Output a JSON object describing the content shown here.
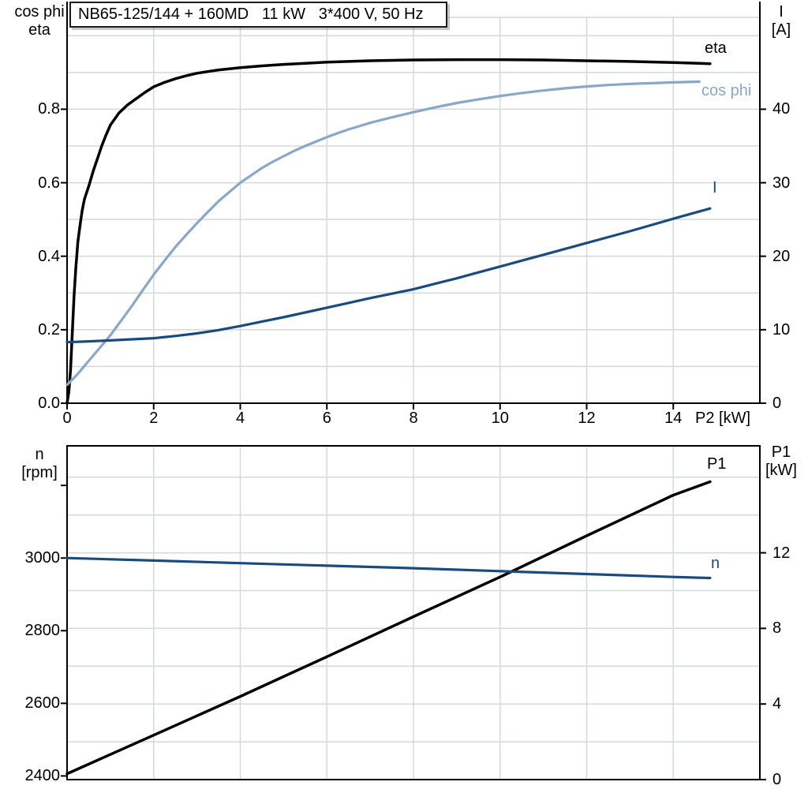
{
  "header": {
    "title": "NB65-125/144 + 160MD   11 kW   3*400 V, 50 Hz"
  },
  "colors": {
    "background": "#ffffff",
    "gridline": "#d5d8db",
    "axis": "#000000",
    "curve_black": "#000000",
    "curve_light_blue": "#8aa6c9",
    "curve_dark_blue": "#1a4b7e"
  },
  "chart_data": [
    {
      "type": "line",
      "title": "NB65-125/144 + 160MD   11 kW   3*400 V, 50 Hz",
      "xlabel": "P2 [kW]",
      "x_range": [
        0,
        16
      ],
      "x_grid_step": 2,
      "x_ticks": [
        {
          "value": 0,
          "label": "0"
        },
        {
          "value": 2,
          "label": "2"
        },
        {
          "value": 4,
          "label": "4"
        },
        {
          "value": 6,
          "label": "6"
        },
        {
          "value": 8,
          "label": "8"
        },
        {
          "value": 10,
          "label": "10"
        },
        {
          "value": 12,
          "label": "12"
        },
        {
          "value": 14,
          "label": "14"
        }
      ],
      "left_axis": {
        "header_line1": "cos phi",
        "header_line2": "eta",
        "range": [
          0,
          1.05
        ],
        "grid_step": 0.1,
        "ticks": [
          {
            "value": 0.0,
            "label": "0.0"
          },
          {
            "value": 0.2,
            "label": "0.2"
          },
          {
            "value": 0.4,
            "label": "0.4"
          },
          {
            "value": 0.6,
            "label": "0.6"
          },
          {
            "value": 0.8,
            "label": "0.8"
          }
        ]
      },
      "right_axis": {
        "header_line1": "I",
        "header_line2": "[A]",
        "range": [
          0,
          52.5
        ],
        "ticks": [
          {
            "value": 0,
            "label": "0"
          },
          {
            "value": 10,
            "label": "10"
          },
          {
            "value": 20,
            "label": "20"
          },
          {
            "value": 30,
            "label": "30"
          },
          {
            "value": 40,
            "label": "40"
          }
        ]
      },
      "series": [
        {
          "name": "eta",
          "label": "eta",
          "axis": "left",
          "color": "#000000",
          "width": 3.5,
          "points": [
            [
              0,
              0
            ],
            [
              0.04,
              0.03
            ],
            [
              0.08,
              0.09
            ],
            [
              0.12,
              0.19
            ],
            [
              0.16,
              0.29
            ],
            [
              0.2,
              0.365
            ],
            [
              0.25,
              0.44
            ],
            [
              0.3,
              0.485
            ],
            [
              0.35,
              0.525
            ],
            [
              0.4,
              0.555
            ],
            [
              0.5,
              0.59
            ],
            [
              0.6,
              0.63
            ],
            [
              0.7,
              0.665
            ],
            [
              0.8,
              0.7
            ],
            [
              0.9,
              0.73
            ],
            [
              1,
              0.757
            ],
            [
              1.2,
              0.79
            ],
            [
              1.4,
              0.812
            ],
            [
              1.6,
              0.829
            ],
            [
              1.8,
              0.846
            ],
            [
              2,
              0.861
            ],
            [
              2.25,
              0.873
            ],
            [
              2.5,
              0.883
            ],
            [
              2.75,
              0.891
            ],
            [
              3,
              0.898
            ],
            [
              3.5,
              0.907
            ],
            [
              4,
              0.913
            ],
            [
              4.5,
              0.918
            ],
            [
              5,
              0.922
            ],
            [
              5.5,
              0.925
            ],
            [
              6,
              0.928
            ],
            [
              6.5,
              0.93
            ],
            [
              7,
              0.932
            ],
            [
              7.5,
              0.933
            ],
            [
              8,
              0.934
            ],
            [
              9,
              0.935
            ],
            [
              10,
              0.935
            ],
            [
              11,
              0.934
            ],
            [
              12,
              0.932
            ],
            [
              13,
              0.93
            ],
            [
              14,
              0.927
            ],
            [
              14.85,
              0.924
            ]
          ]
        },
        {
          "name": "cos_phi",
          "label": "cos phi",
          "axis": "left",
          "color": "#8aa6c9",
          "width": 3.2,
          "points": [
            [
              0,
              0.05
            ],
            [
              0.25,
              0.08
            ],
            [
              0.5,
              0.115
            ],
            [
              0.75,
              0.15
            ],
            [
              1,
              0.185
            ],
            [
              1.25,
              0.225
            ],
            [
              1.5,
              0.265
            ],
            [
              1.75,
              0.308
            ],
            [
              2,
              0.35
            ],
            [
              2.25,
              0.388
            ],
            [
              2.5,
              0.425
            ],
            [
              2.75,
              0.458
            ],
            [
              3,
              0.49
            ],
            [
              3.25,
              0.52
            ],
            [
              3.5,
              0.55
            ],
            [
              3.75,
              0.575
            ],
            [
              4,
              0.6
            ],
            [
              4.25,
              0.62
            ],
            [
              4.5,
              0.64
            ],
            [
              4.75,
              0.657
            ],
            [
              5,
              0.672
            ],
            [
              5.25,
              0.687
            ],
            [
              5.5,
              0.7
            ],
            [
              5.75,
              0.712
            ],
            [
              6,
              0.724
            ],
            [
              6.25,
              0.735
            ],
            [
              6.5,
              0.745
            ],
            [
              6.75,
              0.754
            ],
            [
              7,
              0.763
            ],
            [
              7.5,
              0.778
            ],
            [
              8,
              0.792
            ],
            [
              8.5,
              0.805
            ],
            [
              9,
              0.817
            ],
            [
              9.5,
              0.827
            ],
            [
              10,
              0.836
            ],
            [
              10.5,
              0.844
            ],
            [
              11,
              0.851
            ],
            [
              11.5,
              0.857
            ],
            [
              12,
              0.862
            ],
            [
              12.5,
              0.866
            ],
            [
              13,
              0.869
            ],
            [
              13.5,
              0.871
            ],
            [
              14,
              0.873
            ],
            [
              14.6,
              0.875
            ]
          ]
        },
        {
          "name": "I",
          "label": "I",
          "axis": "right",
          "color": "#1a4b7e",
          "width": 3.2,
          "points": [
            [
              0,
              8.3
            ],
            [
              0.5,
              8.42
            ],
            [
              1,
              8.55
            ],
            [
              1.5,
              8.7
            ],
            [
              2,
              8.85
            ],
            [
              2.5,
              9.15
            ],
            [
              3,
              9.5
            ],
            [
              3.5,
              9.95
            ],
            [
              4,
              10.5
            ],
            [
              4.5,
              11.1
            ],
            [
              5,
              11.7
            ],
            [
              5.5,
              12.35
            ],
            [
              6,
              13
            ],
            [
              6.5,
              13.65
            ],
            [
              7,
              14.3
            ],
            [
              7.5,
              14.9
            ],
            [
              8,
              15.5
            ],
            [
              8.5,
              16.25
            ],
            [
              9,
              17
            ],
            [
              9.5,
              17.8
            ],
            [
              10,
              18.6
            ],
            [
              10.5,
              19.4
            ],
            [
              11,
              20.2
            ],
            [
              11.5,
              21
            ],
            [
              12,
              21.8
            ],
            [
              12.5,
              22.6
            ],
            [
              13,
              23.4
            ],
            [
              13.5,
              24.25
            ],
            [
              14,
              25.1
            ],
            [
              14.85,
              26.5
            ]
          ]
        }
      ]
    },
    {
      "type": "line",
      "x_range": [
        0,
        16
      ],
      "x_grid_step": 2,
      "x_ticks": [],
      "left_axis": {
        "header_line1": "n",
        "header_line2": "[rpm]",
        "range": [
          2390,
          3309
        ],
        "ticks": [
          {
            "value": 2400,
            "label": "2400"
          },
          {
            "value": 2600,
            "label": "2600"
          },
          {
            "value": 2800,
            "label": "2800"
          },
          {
            "value": 3000,
            "label": "3000"
          },
          {
            "value": 3200,
            "label": ""
          }
        ]
      },
      "right_axis": {
        "header_line1": "P1",
        "header_line2": "[kW]",
        "range": [
          0,
          17.66
        ],
        "grid_step": 2,
        "ticks": [
          {
            "value": 0,
            "label": "0"
          },
          {
            "value": 4,
            "label": "4"
          },
          {
            "value": 8,
            "label": "8"
          },
          {
            "value": 12,
            "label": "12"
          }
        ]
      },
      "series": [
        {
          "name": "P1",
          "label": "P1",
          "axis": "right",
          "color": "#000000",
          "width": 3.5,
          "points": [
            [
              0,
              0.31
            ],
            [
              2,
              2.35
            ],
            [
              4,
              4.4
            ],
            [
              6,
              6.5
            ],
            [
              8,
              8.62
            ],
            [
              10,
              10.72
            ],
            [
              12,
              12.9
            ],
            [
              14,
              15.05
            ],
            [
              14.85,
              15.76
            ]
          ]
        },
        {
          "name": "n",
          "label": "n",
          "axis": "left",
          "color": "#1a4b7e",
          "width": 3.2,
          "points": [
            [
              0,
              3000
            ],
            [
              2,
              2993
            ],
            [
              4,
              2986
            ],
            [
              6,
              2979
            ],
            [
              8,
              2972
            ],
            [
              10,
              2964
            ],
            [
              12,
              2956
            ],
            [
              14,
              2948
            ],
            [
              14.85,
              2945
            ]
          ]
        }
      ]
    }
  ]
}
